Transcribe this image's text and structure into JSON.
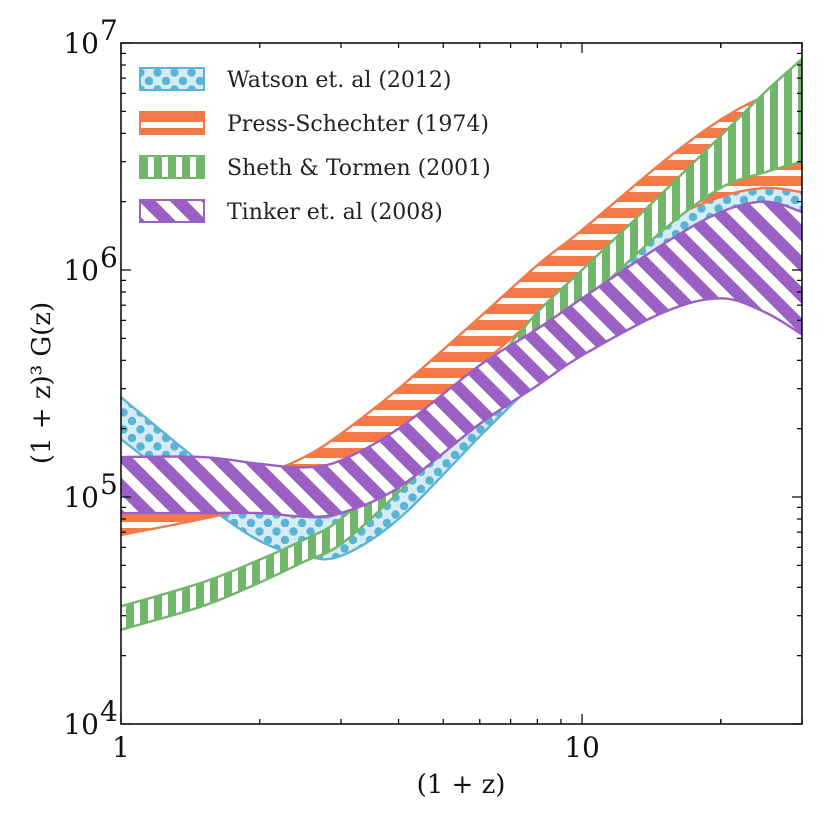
{
  "chart_data": {
    "type": "area",
    "title": "",
    "xlabel": "(1 + z)",
    "ylabel": "(1 + z)³ G(z)",
    "xscale": "log",
    "yscale": "log",
    "xlim": [
      1,
      30
    ],
    "ylim": [
      10000,
      10000000
    ],
    "x_major_ticks": [
      {
        "value": 1,
        "label": "1"
      },
      {
        "value": 10,
        "label": "10"
      }
    ],
    "y_major_ticks": [
      {
        "value": 10000,
        "base": "10",
        "exp": "4"
      },
      {
        "value": 100000,
        "base": "10",
        "exp": "5"
      },
      {
        "value": 1000000,
        "base": "10",
        "exp": "6"
      },
      {
        "value": 10000000,
        "base": "10",
        "exp": "7"
      }
    ],
    "legend_position": "top-left",
    "series": [
      {
        "name": "Watson et. al (2012)",
        "color": "#5ab4d6",
        "fill": "#d5ecf5",
        "hatch": "dots",
        "x": [
          1,
          1.5,
          2,
          2.5,
          3,
          4,
          6,
          8,
          10,
          15,
          20,
          25,
          30
        ],
        "upper": [
          275000,
          140000,
          92000,
          82000,
          85000,
          120000,
          300000,
          550000,
          900000,
          1900000,
          2800000,
          3100000,
          3100000
        ],
        "lower": [
          180000,
          95000,
          64000,
          55000,
          55000,
          80000,
          185000,
          330000,
          520000,
          1100000,
          1400000,
          1400000,
          1350000
        ]
      },
      {
        "name": "Press-Schechter (1974)",
        "color": "#f37a48",
        "fill": "#ffffff",
        "hatch": "horizontal",
        "x": [
          1,
          1.5,
          2,
          2.5,
          3,
          4,
          6,
          8,
          10,
          15,
          20,
          25,
          30
        ],
        "upper": [
          88000,
          110000,
          125000,
          150000,
          190000,
          300000,
          620000,
          1050000,
          1500000,
          3000000,
          4600000,
          5800000,
          5900000
        ],
        "lower": [
          68000,
          80000,
          92000,
          110000,
          130000,
          190000,
          380000,
          620000,
          850000,
          1600000,
          2100000,
          2300000,
          2200000
        ]
      },
      {
        "name": "Sheth & Tormen (2001)",
        "color": "#72b66b",
        "fill": "#ffffff",
        "hatch": "vertical",
        "x": [
          1,
          1.5,
          2,
          2.5,
          3,
          4,
          6,
          8,
          10,
          15,
          20,
          25,
          30
        ],
        "upper": [
          33000,
          42000,
          53000,
          65000,
          80000,
          140000,
          330000,
          650000,
          1000000,
          2200000,
          3900000,
          6100000,
          8500000
        ],
        "lower": [
          26000,
          33000,
          42000,
          52000,
          62000,
          105000,
          240000,
          460000,
          700000,
          1500000,
          2300000,
          2700000,
          3000000
        ]
      },
      {
        "name": "Tinker et. al (2008)",
        "color": "#9a60c4",
        "fill": "#ffffff",
        "hatch": "diagonal",
        "x": [
          1,
          1.5,
          2,
          2.5,
          3,
          4,
          6,
          8,
          10,
          15,
          20,
          25,
          30
        ],
        "upper": [
          150000,
          150000,
          140000,
          135000,
          145000,
          200000,
          380000,
          550000,
          750000,
          1300000,
          1800000,
          2000000,
          1800000
        ],
        "lower": [
          85000,
          85000,
          85000,
          82000,
          85000,
          110000,
          210000,
          310000,
          420000,
          650000,
          750000,
          650000,
          520000
        ]
      }
    ]
  }
}
